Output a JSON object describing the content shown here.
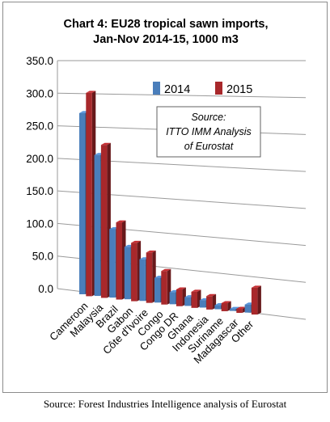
{
  "chart_data": {
    "type": "bar",
    "title_lines": [
      "Chart 4: EU28 tropical sawn imports,",
      "Jan-Nov 2014-15, 1000 m3"
    ],
    "categories": [
      "Cameroon",
      "Malaysia",
      "Brazil",
      "Gabon",
      "Côte d'Ivoire",
      "Congo",
      "Congo DR",
      "Ghana",
      "Indonesia",
      "Suriname",
      "Madagascar",
      "Other"
    ],
    "series": [
      {
        "name": "2014",
        "color": "#4a7ebb",
        "values": [
          270,
          210,
          102,
          78,
          62,
          37,
          18,
          13,
          11,
          6,
          3,
          12
        ]
      },
      {
        "name": "2015",
        "color": "#a8282b",
        "values": [
          303,
          228,
          115,
          87,
          75,
          50,
          25,
          24,
          20,
          12,
          6,
          40
        ]
      }
    ],
    "y_ticks": [
      "0.0",
      "50.0",
      "100.0",
      "150.0",
      "200.0",
      "250.0",
      "300.0",
      "350.0"
    ],
    "ylim": [
      0,
      350
    ],
    "grid": true,
    "legend_position": "top-right",
    "annotation_lines": [
      "Source:",
      "ITTO IMM Analysis",
      "of Eurostat"
    ]
  },
  "caption": "Source: Forest Industries Intelligence analysis of Eurostat"
}
